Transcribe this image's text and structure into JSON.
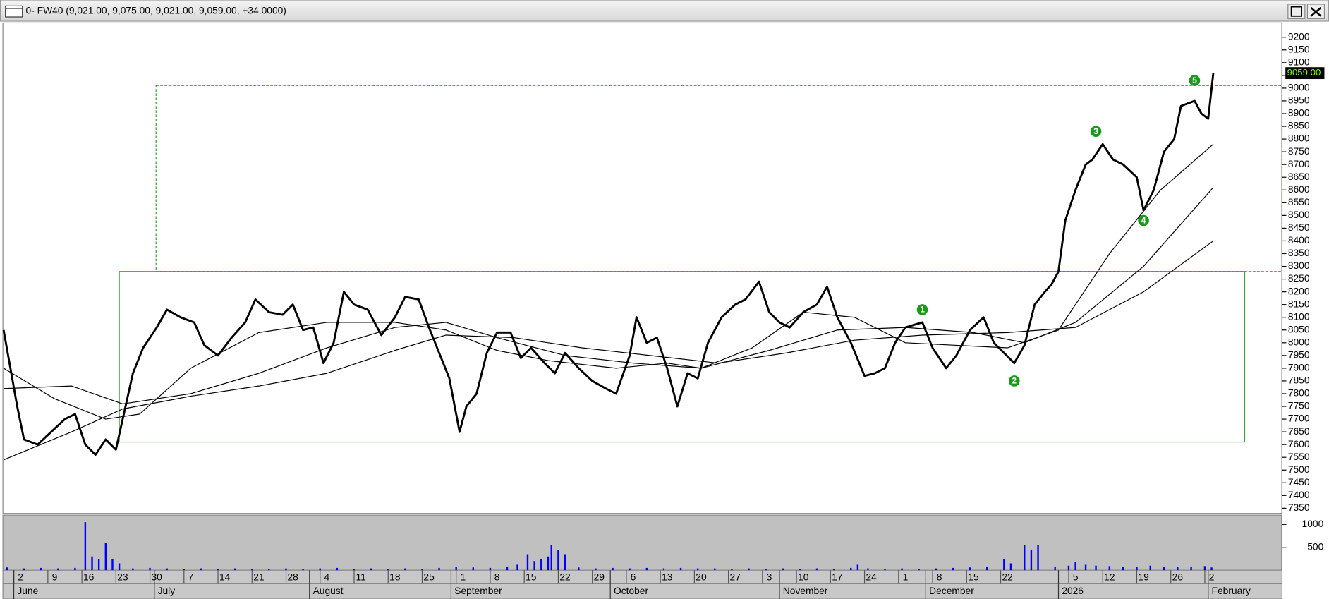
{
  "window": {
    "title": "0- FW40 (9,021.00, 9,075.00, 9,021.00, 9,059.00, +34.0000)"
  },
  "chart_data": [
    {
      "type": "line",
      "xlim": [
        -0.52,
        37.07
      ],
      "ylim": [
        7333,
        9253
      ],
      "yticks": [
        7350,
        7400,
        7450,
        7500,
        7550,
        7600,
        7650,
        7700,
        7750,
        7800,
        7850,
        7900,
        7950,
        8000,
        8050,
        8100,
        8150,
        8200,
        8250,
        8300,
        8350,
        8400,
        8450,
        8500,
        8550,
        8600,
        8650,
        8700,
        8750,
        8800,
        8850,
        8900,
        8950,
        9000,
        9050,
        9100,
        9150,
        9200
      ],
      "last_price": {
        "value": 9059,
        "label": "9059.00"
      },
      "series": [
        {
          "color": "#000000",
          "x": [
            -0.5,
            -0.3,
            -0.1,
            0.1,
            0.5,
            0.9,
            1.3,
            1.6,
            1.9,
            2.2,
            2.5,
            2.8,
            3.0,
            3.3,
            3.6,
            4.0,
            4.3,
            4.7,
            5.1,
            5.4,
            5.8,
            6.2,
            6.6,
            6.9,
            7.3,
            7.7,
            8.0,
            8.3,
            8.6,
            8.9,
            9.2,
            9.5,
            9.8,
            10.2,
            10.6,
            11.0,
            11.3,
            11.7,
            12.0,
            12.3,
            12.6,
            12.9,
            13.1,
            13.4,
            13.7,
            14.0,
            14.4,
            14.7,
            15.0,
            15.4,
            15.7,
            16.0,
            16.4,
            16.8,
            17.2,
            17.5,
            17.9,
            18.1,
            18.4,
            18.7,
            19.0,
            19.3,
            19.6,
            19.9,
            20.2,
            20.6,
            21.0,
            21.3,
            21.7,
            22.0,
            22.3,
            22.6,
            23.0,
            23.4,
            23.7,
            24.0,
            24.4,
            24.8,
            25.1,
            25.4,
            25.7,
            26.0,
            26.5,
            26.8,
            27.2,
            27.5,
            27.9,
            28.3,
            28.6,
            28.9,
            29.2,
            29.5,
            29.8,
            30.1,
            30.3,
            30.5,
            30.7,
            31.0,
            31.3,
            31.5,
            31.8,
            32.1,
            32.4,
            32.8,
            33.0,
            33.3,
            33.6,
            33.9,
            34.1,
            34.5,
            34.7,
            34.9,
            35.05
          ],
          "values": [
            8050,
            7900,
            7750,
            7620,
            7600,
            7650,
            7700,
            7720,
            7600,
            7560,
            7620,
            7580,
            7700,
            7880,
            7980,
            8060,
            8130,
            8100,
            8080,
            7990,
            7950,
            8020,
            8080,
            8170,
            8120,
            8110,
            8150,
            8050,
            8060,
            7920,
            8000,
            8200,
            8150,
            8130,
            8030,
            8100,
            8180,
            8170,
            8060,
            7960,
            7860,
            7650,
            7750,
            7800,
            7960,
            8040,
            8040,
            7940,
            7980,
            7920,
            7880,
            7960,
            7900,
            7850,
            7820,
            7800,
            7950,
            8100,
            8000,
            8020,
            7900,
            7750,
            7880,
            7860,
            8000,
            8100,
            8150,
            8170,
            8240,
            8120,
            8080,
            8060,
            8120,
            8150,
            8220,
            8100,
            8000,
            7870,
            7880,
            7900,
            8000,
            8060,
            8080,
            7980,
            7900,
            7950,
            8050,
            8100,
            8000,
            7960,
            7920,
            7990,
            8150,
            8200,
            8230,
            8280,
            8480,
            8600,
            8700,
            8720,
            8780,
            8720,
            8700,
            8650,
            8520,
            8600,
            8750,
            8800,
            8930,
            8950,
            8900,
            8880,
            9059
          ]
        },
        {
          "color": "#000000",
          "x": [
            -0.5,
            1,
            2.5,
            3.5,
            5,
            7,
            9,
            11,
            12.5,
            14,
            15.5,
            17.5,
            19,
            20,
            21.5,
            23,
            24.5,
            26,
            27.5,
            29,
            30.5,
            32,
            33.5,
            35.05
          ],
          "values": [
            7900,
            7780,
            7700,
            7720,
            7900,
            8040,
            8080,
            8080,
            8050,
            7970,
            7930,
            7900,
            7920,
            7900,
            7980,
            8120,
            8100,
            8000,
            7990,
            7980,
            8050,
            8350,
            8600,
            8780
          ]
        },
        {
          "color": "#000000",
          "x": [
            -0.5,
            1.5,
            3,
            5,
            7,
            9,
            11,
            12.5,
            14,
            16,
            18,
            20,
            22,
            24,
            26,
            28,
            29.5,
            31,
            33,
            35.05
          ],
          "values": [
            7820,
            7830,
            7760,
            7800,
            7880,
            7980,
            8060,
            8080,
            8020,
            7950,
            7920,
            7900,
            7970,
            8050,
            8060,
            8040,
            8000,
            8080,
            8300,
            8610
          ]
        },
        {
          "color": "#000000",
          "x": [
            -0.5,
            1.5,
            3,
            5,
            7,
            9,
            11,
            12.5,
            14.5,
            16.5,
            18.5,
            20.5,
            22.5,
            24.5,
            26.5,
            29,
            31,
            33,
            35.05
          ],
          "values": [
            7540,
            7650,
            7740,
            7790,
            7830,
            7880,
            7970,
            8030,
            8020,
            7980,
            7950,
            7920,
            7960,
            8010,
            8030,
            8040,
            8060,
            8200,
            8400
          ]
        }
      ],
      "boxes": [
        {
          "x": [
            2.9,
            35.97
          ],
          "y": [
            7610,
            8280
          ],
          "color": "#22aa22",
          "dashed": false
        },
        {
          "x": [
            3.98,
            37.07
          ],
          "y": [
            8280,
            9010
          ],
          "color": "#22aa22",
          "dashed": true
        }
      ],
      "annotations": [
        {
          "label": "1",
          "x": 26.5,
          "y": 8130
        },
        {
          "label": "2",
          "x": 29.2,
          "y": 7850
        },
        {
          "label": "3",
          "x": 31.6,
          "y": 8830
        },
        {
          "label": "4",
          "x": 33.0,
          "y": 8480
        },
        {
          "label": "5",
          "x": 34.5,
          "y": 9030
        }
      ]
    },
    {
      "type": "bar",
      "color": "#0000ff",
      "xlim": [
        -0.52,
        37.07
      ],
      "ylim": [
        0,
        1167
      ],
      "yticks": [
        500,
        1000
      ],
      "x": [
        -0.4,
        0.1,
        0.6,
        1.1,
        1.6,
        1.9,
        2.1,
        2.3,
        2.5,
        2.7,
        2.9,
        3.3,
        3.8,
        4.3,
        4.8,
        5.3,
        5.8,
        6.3,
        6.8,
        7.3,
        7.8,
        8.3,
        8.8,
        9.3,
        9.8,
        10.3,
        10.8,
        11.3,
        11.8,
        12.3,
        12.8,
        13.3,
        13.8,
        14.3,
        14.6,
        14.9,
        15.1,
        15.3,
        15.5,
        15.6,
        15.8,
        16.0,
        16.4,
        16.9,
        17.4,
        17.9,
        18.4,
        18.9,
        19.4,
        19.9,
        20.4,
        20.9,
        21.4,
        21.9,
        22.4,
        22.9,
        23.4,
        23.9,
        24.4,
        24.6,
        24.9,
        25.4,
        25.9,
        26.4,
        26.9,
        27.4,
        27.9,
        28.4,
        28.9,
        29.1,
        29.5,
        29.7,
        29.9,
        30.4,
        30.8,
        31.0,
        31.3,
        31.6,
        32.0,
        32.4,
        32.8,
        33.2,
        33.6,
        34.0,
        34.4,
        34.8,
        35.0
      ],
      "values": [
        60,
        40,
        50,
        40,
        50,
        1050,
        300,
        250,
        600,
        250,
        150,
        40,
        50,
        40,
        30,
        40,
        30,
        40,
        30,
        30,
        40,
        30,
        40,
        50,
        30,
        40,
        30,
        40,
        30,
        50,
        70,
        60,
        50,
        80,
        120,
        350,
        200,
        250,
        300,
        550,
        450,
        350,
        60,
        40,
        50,
        40,
        50,
        40,
        50,
        40,
        40,
        30,
        40,
        30,
        40,
        30,
        40,
        30,
        50,
        120,
        40,
        30,
        40,
        30,
        40,
        50,
        60,
        80,
        250,
        150,
        550,
        450,
        550,
        80,
        100,
        180,
        120,
        100,
        90,
        80,
        70,
        100,
        80,
        70,
        80,
        90,
        60
      ],
      "xticks": [
        {
          "value": 0,
          "label": "2"
        },
        {
          "value": 1,
          "label": "9"
        },
        {
          "value": 2,
          "label": "16"
        },
        {
          "value": 3,
          "label": "23"
        },
        {
          "value": 4,
          "label": "30"
        },
        {
          "value": 5,
          "label": "7"
        },
        {
          "value": 6,
          "label": "14"
        },
        {
          "value": 7,
          "label": "21"
        },
        {
          "value": 8,
          "label": "28"
        },
        {
          "value": 9,
          "label": "4"
        },
        {
          "value": 10,
          "label": "11"
        },
        {
          "value": 11,
          "label": "18"
        },
        {
          "value": 12,
          "label": "25"
        },
        {
          "value": 13,
          "label": "1"
        },
        {
          "value": 14,
          "label": "8"
        },
        {
          "value": 15,
          "label": "15"
        },
        {
          "value": 16,
          "label": "22"
        },
        {
          "value": 17,
          "label": "29"
        },
        {
          "value": 18,
          "label": "6"
        },
        {
          "value": 19,
          "label": "13"
        },
        {
          "value": 20,
          "label": "20"
        },
        {
          "value": 21,
          "label": "27"
        },
        {
          "value": 22,
          "label": "3"
        },
        {
          "value": 23,
          "label": "10"
        },
        {
          "value": 24,
          "label": "17"
        },
        {
          "value": 25,
          "label": "24"
        },
        {
          "value": 26,
          "label": "1"
        },
        {
          "value": 27,
          "label": "8"
        },
        {
          "value": 28,
          "label": "15"
        },
        {
          "value": 29,
          "label": "22"
        },
        {
          "value": 31,
          "label": "5"
        },
        {
          "value": 32,
          "label": "12"
        },
        {
          "value": 33,
          "label": "19"
        },
        {
          "value": 34,
          "label": "26"
        },
        {
          "value": 35,
          "label": "2"
        }
      ],
      "month_ticks": [
        {
          "value": -0.2,
          "label": "June"
        },
        {
          "value": 3.93,
          "label": "July"
        },
        {
          "value": 8.49,
          "label": "August"
        },
        {
          "value": 12.65,
          "label": "September"
        },
        {
          "value": 17.33,
          "label": "October"
        },
        {
          "value": 22.3,
          "label": "November"
        },
        {
          "value": 26.6,
          "label": "December"
        },
        {
          "value": 30.5,
          "label": "2026"
        },
        {
          "value": 34.9,
          "label": "February"
        }
      ]
    }
  ]
}
